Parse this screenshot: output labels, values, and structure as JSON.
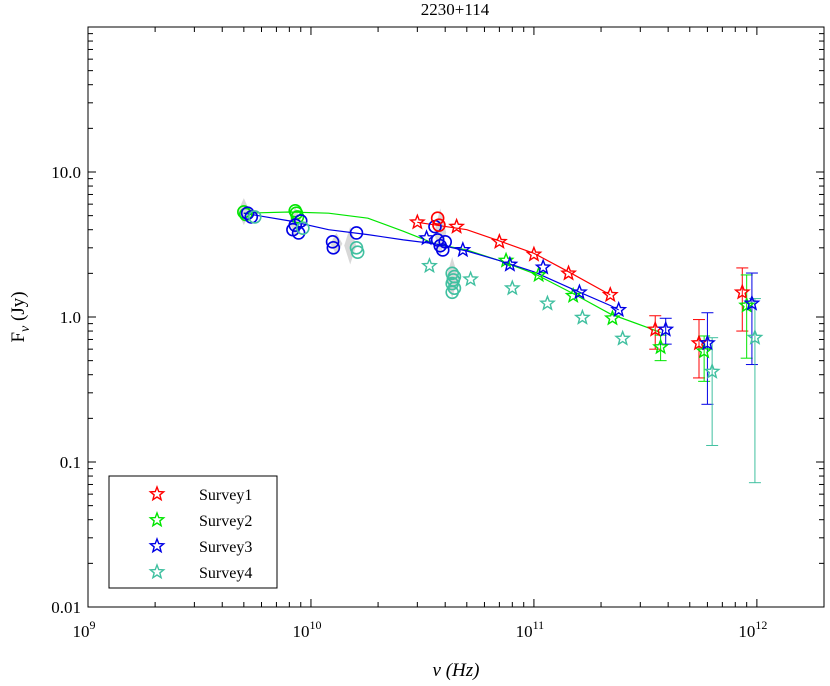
{
  "chart_data": {
    "type": "scatter",
    "title": "2230+114",
    "xlabel": "ν (Hz)",
    "ylabel": "F",
    "ylabel_subscript": "ν",
    "ylabel_unit": " (Jy)",
    "x_scale": "log",
    "y_scale": "log",
    "xlim": [
      1000000000.0,
      2000000000000.0
    ],
    "ylim": [
      0.01,
      100
    ],
    "grid": false,
    "legend_position": "bottom-left",
    "x_ticks": [
      {
        "value": 1000000000.0,
        "mantissa": "10",
        "exp": "9"
      },
      {
        "value": 10000000000.0,
        "mantissa": "10",
        "exp": "10"
      },
      {
        "value": 100000000000.0,
        "mantissa": "10",
        "exp": "11"
      },
      {
        "value": 1000000000000.0,
        "mantissa": "10",
        "exp": "12"
      }
    ],
    "y_ticks": [
      {
        "value": 0.01,
        "label": "0.01"
      },
      {
        "value": 0.1,
        "label": "0.1"
      },
      {
        "value": 1,
        "label": "1.0"
      },
      {
        "value": 10,
        "label": "10.0"
      }
    ],
    "series": [
      {
        "name": "Survey1",
        "color": "#ff0000",
        "marker": "star",
        "points": [
          {
            "x": 30000000000.0,
            "y": 4.5
          },
          {
            "x": 45000000000.0,
            "y": 4.2
          },
          {
            "x": 70000000000.0,
            "y": 3.3
          },
          {
            "x": 100000000000.0,
            "y": 2.7
          },
          {
            "x": 143000000000.0,
            "y": 2.0
          },
          {
            "x": 220000000000.0,
            "y": 1.42
          },
          {
            "x": 350000000000.0,
            "y": 0.82,
            "ylo": 0.6,
            "yhi": 1.02
          },
          {
            "x": 550000000000.0,
            "y": 0.66,
            "ylo": 0.38,
            "yhi": 0.96
          },
          {
            "x": 860000000000.0,
            "y": 1.48,
            "ylo": 0.8,
            "yhi": 2.18
          }
        ],
        "fit": [
          [
            30000000000.0,
            4.5
          ],
          [
            50000000000.0,
            4.0
          ],
          [
            70000000000.0,
            3.35
          ],
          [
            100000000000.0,
            2.75
          ],
          [
            143000000000.0,
            2.05
          ],
          [
            220000000000.0,
            1.42
          ]
        ]
      },
      {
        "name": "Survey2",
        "color": "#00e600",
        "marker": "star",
        "points": [
          {
            "x": 75000000000.0,
            "y": 2.45
          },
          {
            "x": 105000000000.0,
            "y": 1.95
          },
          {
            "x": 150000000000.0,
            "y": 1.4
          },
          {
            "x": 225000000000.0,
            "y": 0.98
          },
          {
            "x": 370000000000.0,
            "y": 0.62,
            "ylo": 0.5,
            "yhi": 0.75
          },
          {
            "x": 580000000000.0,
            "y": 0.58,
            "ylo": 0.36,
            "yhi": 0.74
          },
          {
            "x": 900000000000.0,
            "y": 1.2,
            "ylo": 0.52,
            "yhi": 1.95
          }
        ],
        "fit": [
          [
            5000000000.0,
            5.2
          ],
          [
            8000000000.0,
            5.3
          ],
          [
            12000000000.0,
            5.2
          ],
          [
            18000000000.0,
            4.8
          ],
          [
            26000000000.0,
            3.9
          ],
          [
            36000000000.0,
            3.2
          ],
          [
            50000000000.0,
            2.9
          ],
          [
            70000000000.0,
            2.45
          ],
          [
            100000000000.0,
            2.0
          ],
          [
            150000000000.0,
            1.45
          ],
          [
            220000000000.0,
            1.05
          ],
          [
            320000000000.0,
            0.85
          ],
          [
            370000000000.0,
            0.78
          ]
        ]
      },
      {
        "name": "Survey3",
        "color": "#0000e6",
        "marker": "star",
        "points": [
          {
            "x": 33000000000.0,
            "y": 3.5
          },
          {
            "x": 48000000000.0,
            "y": 2.9
          },
          {
            "x": 78000000000.0,
            "y": 2.3
          },
          {
            "x": 110000000000.0,
            "y": 2.2
          },
          {
            "x": 160000000000.0,
            "y": 1.48
          },
          {
            "x": 240000000000.0,
            "y": 1.12
          },
          {
            "x": 390000000000.0,
            "y": 0.82,
            "ylo": 0.65,
            "yhi": 0.98
          },
          {
            "x": 600000000000.0,
            "y": 0.66,
            "ylo": 0.25,
            "yhi": 1.07
          },
          {
            "x": 950000000000.0,
            "y": 1.24,
            "ylo": 0.47,
            "yhi": 2.01
          }
        ],
        "fit": [
          [
            5000000000.0,
            5.2
          ],
          [
            8000000000.0,
            4.6
          ],
          [
            12000000000.0,
            4.0
          ],
          [
            18000000000.0,
            3.7
          ],
          [
            26000000000.0,
            3.4
          ],
          [
            36000000000.0,
            3.2
          ],
          [
            50000000000.0,
            2.85
          ],
          [
            70000000000.0,
            2.45
          ],
          [
            100000000000.0,
            2.05
          ],
          [
            150000000000.0,
            1.55
          ],
          [
            220000000000.0,
            1.2
          ],
          [
            240000000000.0,
            1.12
          ]
        ]
      },
      {
        "name": "Survey4",
        "color": "#40c0a0",
        "marker": "star",
        "points": [
          {
            "x": 34000000000.0,
            "y": 2.25
          },
          {
            "x": 52000000000.0,
            "y": 1.82
          },
          {
            "x": 80000000000.0,
            "y": 1.58
          },
          {
            "x": 115000000000.0,
            "y": 1.24
          },
          {
            "x": 165000000000.0,
            "y": 0.99
          },
          {
            "x": 250000000000.0,
            "y": 0.71
          },
          {
            "x": 630000000000.0,
            "y": 0.42,
            "ylo": 0.13,
            "yhi": 0.72
          },
          {
            "x": 980000000000.0,
            "y": 0.72,
            "ylo": 0.072,
            "yhi": 1.34
          }
        ],
        "fit": []
      }
    ],
    "circles": [
      {
        "color": "#00e600",
        "points": [
          [
            5000000000.0,
            5.3
          ],
          [
            5100000000.0,
            5.1
          ],
          [
            8500000000.0,
            5.4
          ],
          [
            8600000000.0,
            5.2
          ],
          [
            8700000000.0,
            4.9
          ]
        ]
      },
      {
        "color": "#0000e6",
        "points": [
          [
            5200000000.0,
            5.2
          ],
          [
            5400000000.0,
            4.9
          ],
          [
            8300000000.0,
            4.0
          ],
          [
            8500000000.0,
            4.3
          ],
          [
            8800000000.0,
            3.8
          ],
          [
            9000000000.0,
            4.6
          ],
          [
            12500000000.0,
            3.3
          ],
          [
            12600000000.0,
            3.0
          ],
          [
            16000000000.0,
            3.8
          ],
          [
            37000000000.0,
            3.4
          ],
          [
            38000000000.0,
            3.1
          ],
          [
            39000000000.0,
            2.9
          ],
          [
            40000000000.0,
            3.3
          ],
          [
            36000000000.0,
            4.2
          ]
        ]
      },
      {
        "color": "#ff0000",
        "points": [
          [
            37000000000.0,
            4.8
          ],
          [
            37500000000.0,
            4.3
          ]
        ]
      },
      {
        "color": "#40c0a0",
        "points": [
          [
            5600000000.0,
            4.9
          ],
          [
            9200000000.0,
            4.1
          ],
          [
            16000000000.0,
            3.0
          ],
          [
            16200000000.0,
            2.8
          ],
          [
            43000000000.0,
            2.0
          ],
          [
            43500000000.0,
            1.8
          ],
          [
            43000000000.0,
            1.7
          ],
          [
            44000000000.0,
            1.58
          ],
          [
            43000000000.0,
            1.48
          ],
          [
            44000000000.0,
            1.9
          ]
        ]
      }
    ],
    "gray_bands": [
      {
        "x": 5000000000.0,
        "ylo": 4.3,
        "yhi": 6.6
      },
      {
        "x": 8500000000.0,
        "ylo": 3.6,
        "yhi": 5.8
      },
      {
        "x": 13000000000.0,
        "ylo": 2.7,
        "yhi": 3.8
      },
      {
        "x": 15000000000.0,
        "ylo": 2.3,
        "yhi": 4.2
      },
      {
        "x": 38000000000.0,
        "ylo": 2.6,
        "yhi": 5.6
      },
      {
        "x": 43000000000.0,
        "ylo": 1.35,
        "yhi": 2.6
      }
    ]
  }
}
